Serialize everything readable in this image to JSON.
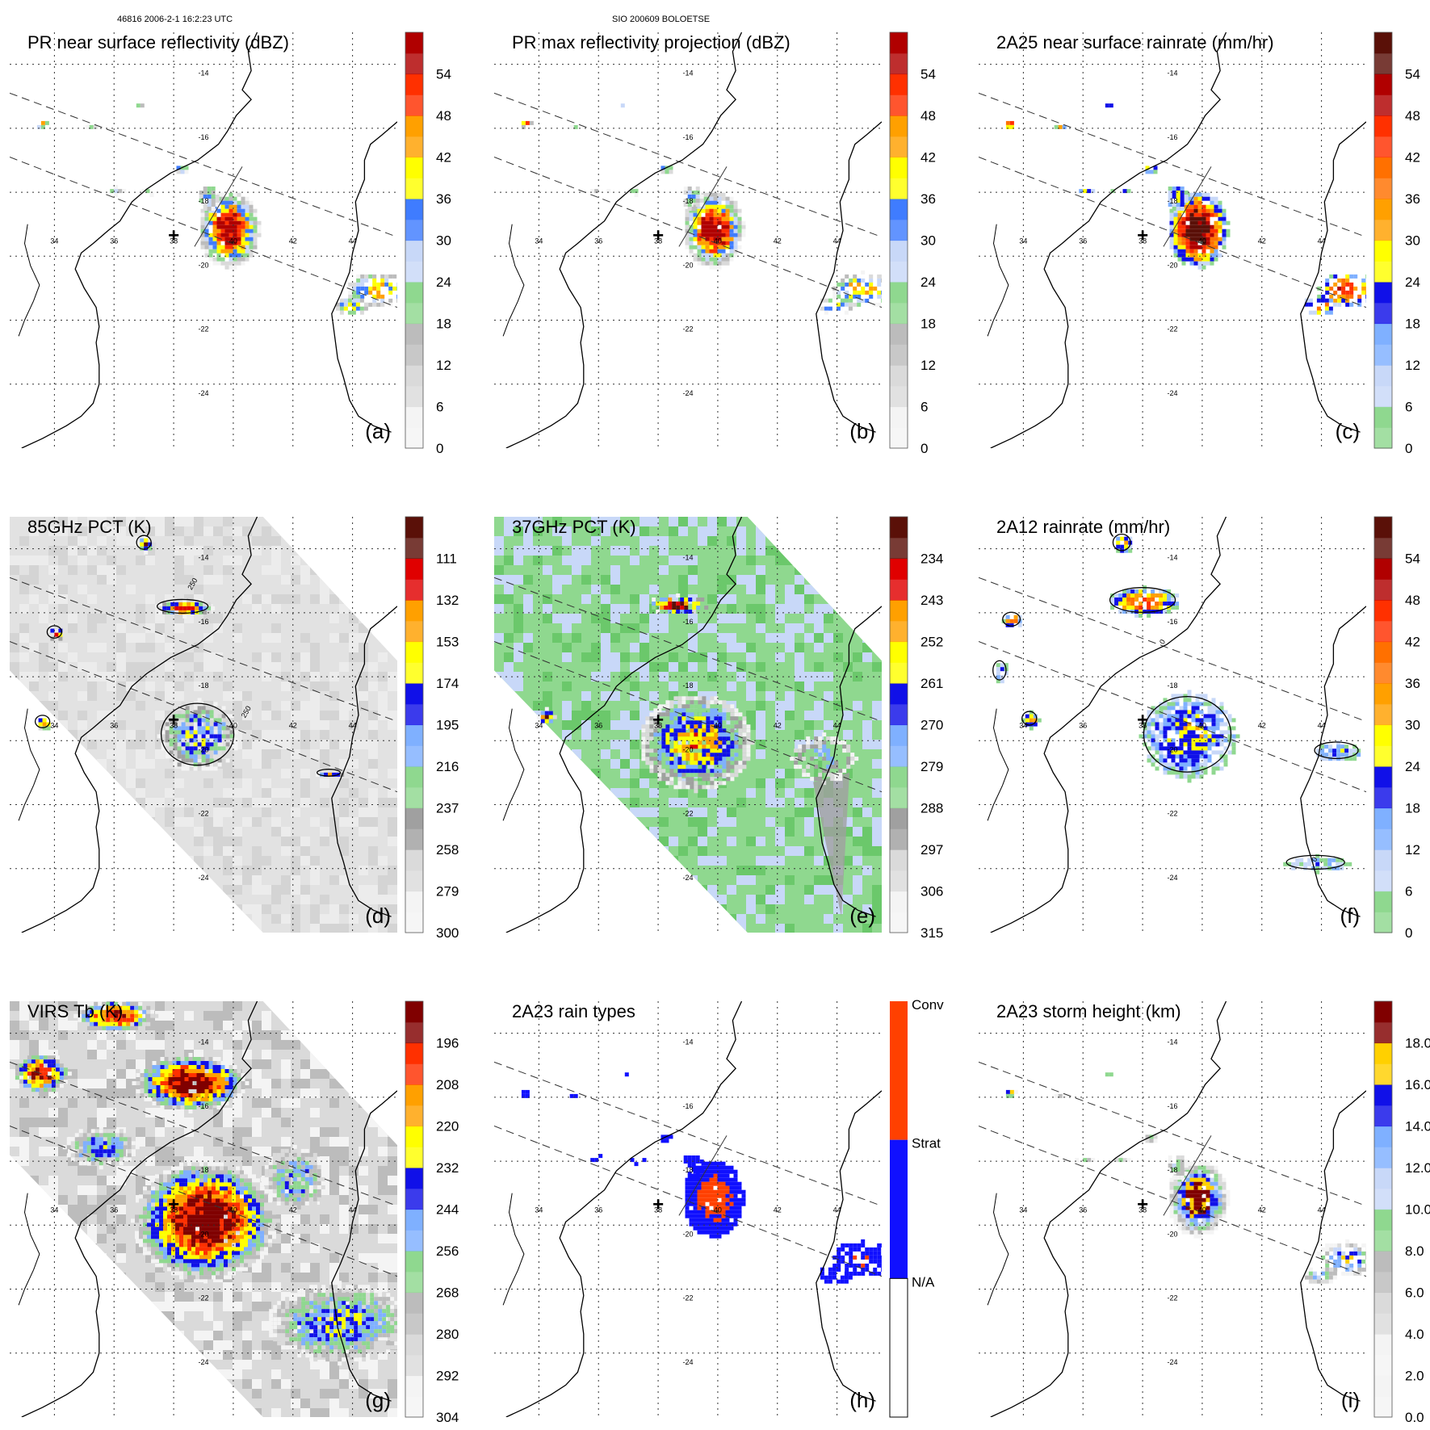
{
  "header": {
    "left": "46816 2006-2-1 16:2:23 UTC",
    "center": "SIO 200609 BOLOETSE"
  },
  "palettes": {
    "gray": [
      "#f4f4f4",
      "#dadada",
      "#bcbcbc",
      "#a0a0a0"
    ],
    "green": [
      "#8fd88f",
      "#6bc86b"
    ],
    "light_blue": [
      "#c8d8f8",
      "#7fb0ff"
    ],
    "blue": [
      "#3f7cff",
      "#1010e8"
    ],
    "yellow": "#ffff00",
    "orange": [
      "#ffd000",
      "#ffa000",
      "#ff7000"
    ],
    "red": [
      "#ff3000",
      "#e00000",
      "#b00000",
      "#800000",
      "#5a1008"
    ],
    "conv": "#ff4000",
    "strat": "#1010ff"
  },
  "map": {
    "lon_ticks": [
      "34",
      "36",
      "38",
      "40",
      "42",
      "44"
    ],
    "lat_ticks": [
      "-14",
      "-16",
      "-18",
      "-20",
      "-22",
      "-24"
    ],
    "center_marker": "+"
  },
  "chart_data": [
    {
      "id": "a",
      "type": "heatmap",
      "title": "PR near surface reflectivity (dBZ)",
      "label": "(a)",
      "variable": "reflectivity",
      "units": "dBZ",
      "colorbar": {
        "ticks": [
          "0",
          "6",
          "12",
          "18",
          "24",
          "30",
          "36",
          "42",
          "48",
          "54"
        ],
        "range": [
          0,
          60
        ]
      },
      "x_range": [
        32.5,
        45.5
      ],
      "y_range": [
        -26,
        -13
      ],
      "background": "none",
      "swath": true
    },
    {
      "id": "b",
      "type": "heatmap",
      "title": "PR max reflectivity projection (dBZ)",
      "label": "(b)",
      "variable": "max reflectivity",
      "units": "dBZ",
      "colorbar": {
        "ticks": [
          "0",
          "6",
          "12",
          "18",
          "24",
          "30",
          "36",
          "42",
          "48",
          "54"
        ],
        "range": [
          0,
          60
        ]
      },
      "x_range": [
        32.5,
        45.5
      ],
      "y_range": [
        -26,
        -13
      ],
      "background": "none",
      "swath": true
    },
    {
      "id": "c",
      "type": "heatmap",
      "title": "2A25 near surface rainrate (mm/hr)",
      "label": "(c)",
      "variable": "rainrate",
      "units": "mm/hr",
      "colorbar": {
        "ticks": [
          "0",
          "6",
          "12",
          "18",
          "24",
          "30",
          "36",
          "42",
          "48",
          "54"
        ],
        "range": [
          0,
          60
        ]
      },
      "x_range": [
        32.5,
        45.5
      ],
      "y_range": [
        -26,
        -13
      ],
      "background": "none",
      "swath": true
    },
    {
      "id": "d",
      "type": "heatmap",
      "title": "85GHz PCT (K)",
      "label": "(d)",
      "variable": "85 GHz PCT",
      "units": "K",
      "colorbar": {
        "ticks": [
          "300",
          "279",
          "258",
          "237",
          "216",
          "195",
          "174",
          "153",
          "132",
          "111"
        ],
        "range": [
          300,
          90
        ]
      },
      "contour_labels": [
        "250",
        "250"
      ],
      "x_range": [
        32.5,
        45.5
      ],
      "y_range": [
        -26,
        -13
      ],
      "background": "gray",
      "swath": true
    },
    {
      "id": "e",
      "type": "heatmap",
      "title": "37GHz PCT (K)",
      "label": "(e)",
      "variable": "37 GHz PCT",
      "units": "K",
      "colorbar": {
        "ticks": [
          "315",
          "306",
          "297",
          "288",
          "279",
          "270",
          "261",
          "252",
          "243",
          "234"
        ],
        "range": [
          315,
          225
        ]
      },
      "x_range": [
        32.5,
        45.5
      ],
      "y_range": [
        -26,
        -13
      ],
      "background": "green",
      "swath": true
    },
    {
      "id": "f",
      "type": "heatmap",
      "title": "2A12 rainrate (mm/hr)",
      "label": "(f)",
      "variable": "rainrate",
      "units": "mm/hr",
      "colorbar": {
        "ticks": [
          "0",
          "6",
          "12",
          "18",
          "24",
          "30",
          "36",
          "42",
          "48",
          "54"
        ],
        "range": [
          0,
          60
        ]
      },
      "contour_labels": [
        "0",
        "0"
      ],
      "x_range": [
        32.5,
        45.5
      ],
      "y_range": [
        -26,
        -13
      ],
      "background": "none",
      "swath": true
    },
    {
      "id": "g",
      "type": "heatmap",
      "title": "VIRS Tb (K)",
      "label": "(g)",
      "variable": "IR brightness temperature",
      "units": "K",
      "colorbar": {
        "ticks": [
          "304",
          "292",
          "280",
          "268",
          "256",
          "244",
          "232",
          "220",
          "208",
          "196"
        ],
        "range": [
          316,
          184
        ]
      },
      "x_range": [
        32.5,
        45.5
      ],
      "y_range": [
        -26,
        -13
      ],
      "background": "ir",
      "swath": true
    },
    {
      "id": "h",
      "type": "heatmap",
      "title": "2A23 rain types",
      "label": "(h)",
      "variable": "rain type",
      "units": "",
      "colorbar": {
        "categories": [
          "N/A",
          "Strat",
          "Conv"
        ]
      },
      "x_range": [
        32.5,
        45.5
      ],
      "y_range": [
        -26,
        -13
      ],
      "background": "none",
      "swath": true
    },
    {
      "id": "i",
      "type": "heatmap",
      "title": "2A23 storm height (km)",
      "label": "(i)",
      "variable": "storm height",
      "units": "km",
      "colorbar": {
        "ticks": [
          "0.0",
          "2.0",
          "4.0",
          "6.0",
          "8.0",
          "10.0",
          "12.0",
          "14.0",
          "16.0",
          "18.0"
        ],
        "range": [
          0,
          20
        ]
      },
      "x_range": [
        32.5,
        45.5
      ],
      "y_range": [
        -26,
        -13
      ],
      "background": "none",
      "swath": true
    }
  ]
}
